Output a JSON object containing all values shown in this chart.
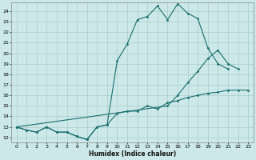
{
  "xlabel": "Humidex (Indice chaleur)",
  "bg_color": "#cce8e8",
  "grid_color": "#aacccc",
  "line_color": "#1a6e6e",
  "xlim": [
    -0.5,
    23.5
  ],
  "ylim": [
    11.5,
    24.8
  ],
  "yticks": [
    12,
    13,
    14,
    15,
    16,
    17,
    18,
    19,
    20,
    21,
    22,
    23,
    24
  ],
  "xticks": [
    0,
    1,
    2,
    3,
    4,
    5,
    6,
    7,
    8,
    9,
    10,
    11,
    12,
    13,
    14,
    15,
    16,
    17,
    18,
    19,
    20,
    21,
    22,
    23
  ],
  "line1_x": [
    0,
    1,
    2,
    3,
    4,
    5,
    6,
    7,
    8,
    9,
    10,
    11,
    12,
    13,
    14,
    15,
    16,
    17,
    18,
    19,
    20,
    21
  ],
  "line1_y": [
    13.0,
    12.7,
    12.5,
    13.0,
    12.5,
    12.5,
    12.1,
    11.8,
    13.0,
    13.2,
    19.3,
    20.9,
    23.2,
    23.5,
    24.5,
    23.2,
    24.7,
    23.8,
    23.3,
    20.5,
    19.0,
    18.5
  ],
  "line2_x": [
    0,
    15,
    16,
    17,
    18,
    19,
    20,
    21,
    22
  ],
  "line2_y": [
    13.0,
    15.0,
    16.0,
    17.2,
    18.3,
    19.5,
    20.3,
    19.0,
    18.5
  ],
  "line3_x": [
    0,
    1,
    2,
    3,
    4,
    5,
    6,
    7,
    8,
    9,
    10,
    11,
    12,
    13,
    14,
    15,
    16,
    17,
    18,
    19,
    20,
    21,
    22,
    23
  ],
  "line3_y": [
    13.0,
    12.7,
    12.5,
    13.0,
    12.5,
    12.5,
    12.1,
    11.8,
    13.0,
    13.2,
    14.3,
    14.5,
    14.5,
    15.0,
    14.7,
    15.3,
    15.5,
    15.8,
    16.0,
    16.2,
    16.3,
    16.5,
    16.5,
    16.5
  ]
}
